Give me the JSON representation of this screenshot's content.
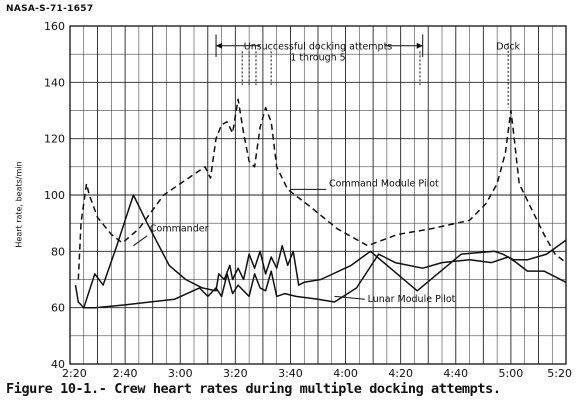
{
  "document_id": "NASA-S-71-1657",
  "caption": "Figure 10-1.- Crew heart rates during multiple docking attempts.",
  "chart_data": {
    "type": "line",
    "ylabel": "Heart rate, beats/min",
    "xlabel": "",
    "ylim": [
      40,
      160
    ],
    "y_ticks": [
      "40",
      "60",
      "80",
      "100",
      "120",
      "140",
      "160"
    ],
    "x_ticks": [
      "2:20",
      "2:40",
      "3:00",
      "3:20",
      "3:40",
      "4:00",
      "4:20",
      "4:40",
      "5:00",
      "5:20"
    ],
    "xlim_minutes": [
      140,
      320
    ],
    "grid": true,
    "series": [
      {
        "name": "Commander",
        "line_style": "solid",
        "points": [
          [
            145,
            60
          ],
          [
            149,
            72
          ],
          [
            152,
            68
          ],
          [
            157,
            82
          ],
          [
            163,
            100
          ],
          [
            168,
            90
          ],
          [
            176,
            75
          ],
          [
            182,
            70
          ],
          [
            188,
            67
          ],
          [
            193,
            66
          ],
          [
            194,
            72
          ],
          [
            196,
            70
          ],
          [
            198,
            75
          ],
          [
            199,
            70
          ],
          [
            201,
            74
          ],
          [
            203,
            70
          ],
          [
            205,
            79
          ],
          [
            207,
            74
          ],
          [
            209,
            80
          ],
          [
            211,
            72
          ],
          [
            213,
            78
          ],
          [
            215,
            74
          ],
          [
            217,
            82
          ],
          [
            219,
            75
          ],
          [
            221,
            80
          ],
          [
            223,
            68
          ],
          [
            225,
            69
          ],
          [
            231,
            70
          ],
          [
            242,
            75
          ],
          [
            249,
            80
          ],
          [
            266,
            66
          ],
          [
            282,
            79
          ],
          [
            294,
            80
          ],
          [
            297,
            79
          ],
          [
            301,
            77
          ],
          [
            306,
            77
          ],
          [
            313,
            79
          ],
          [
            320,
            84
          ]
        ]
      },
      {
        "name": "Command Module Pilot",
        "line_style": "dashed",
        "points": [
          [
            143,
            70
          ],
          [
            144,
            90
          ],
          [
            146,
            104
          ],
          [
            147,
            100
          ],
          [
            150,
            92
          ],
          [
            155,
            86
          ],
          [
            159,
            83
          ],
          [
            165,
            88
          ],
          [
            174,
            100
          ],
          [
            183,
            106
          ],
          [
            189,
            110
          ],
          [
            191,
            106
          ],
          [
            193,
            120
          ],
          [
            195,
            125
          ],
          [
            197,
            126
          ],
          [
            199,
            122
          ],
          [
            201,
            134
          ],
          [
            203,
            122
          ],
          [
            205,
            112
          ],
          [
            207,
            110
          ],
          [
            209,
            124
          ],
          [
            211,
            131
          ],
          [
            213,
            126
          ],
          [
            215,
            110
          ],
          [
            219,
            102
          ],
          [
            227,
            96
          ],
          [
            237,
            88
          ],
          [
            248,
            82
          ],
          [
            259,
            86
          ],
          [
            271,
            88
          ],
          [
            285,
            91
          ],
          [
            291,
            97
          ],
          [
            295,
            104
          ],
          [
            298,
            115
          ],
          [
            300,
            130
          ],
          [
            301,
            122
          ],
          [
            303,
            104
          ],
          [
            307,
            96
          ],
          [
            312,
            86
          ],
          [
            316,
            79
          ],
          [
            320,
            76
          ]
        ]
      },
      {
        "name": "Lunar Module Pilot",
        "line_style": "solid",
        "points": [
          [
            142,
            68
          ],
          [
            143,
            62
          ],
          [
            145,
            60
          ],
          [
            149,
            60
          ],
          [
            160,
            61
          ],
          [
            169,
            62
          ],
          [
            178,
            63
          ],
          [
            187,
            67
          ],
          [
            190,
            64
          ],
          [
            193,
            67
          ],
          [
            195,
            64
          ],
          [
            197,
            72
          ],
          [
            199,
            65
          ],
          [
            201,
            68
          ],
          [
            203,
            66
          ],
          [
            205,
            64
          ],
          [
            207,
            72
          ],
          [
            209,
            67
          ],
          [
            211,
            66
          ],
          [
            213,
            73
          ],
          [
            215,
            64
          ],
          [
            218,
            65
          ],
          [
            222,
            64
          ],
          [
            230,
            63
          ],
          [
            236,
            62
          ],
          [
            244,
            67
          ],
          [
            252,
            79
          ],
          [
            258,
            76
          ],
          [
            268,
            74
          ],
          [
            275,
            76
          ],
          [
            285,
            77
          ],
          [
            293,
            76
          ],
          [
            299,
            78
          ],
          [
            302,
            76
          ],
          [
            306,
            73
          ],
          [
            312,
            73
          ],
          [
            316,
            71
          ],
          [
            320,
            69
          ]
        ]
      }
    ],
    "annotations": [
      {
        "text": "Unsuccessful docking attempts",
        "kind": "label"
      },
      {
        "text": "1 through 5",
        "kind": "label"
      },
      {
        "text": "Dock",
        "kind": "label"
      }
    ],
    "docking_attempt_times_minutes": [
      202.5,
      205,
      207.5,
      213,
      267
    ],
    "dock_time_minutes": 299
  }
}
